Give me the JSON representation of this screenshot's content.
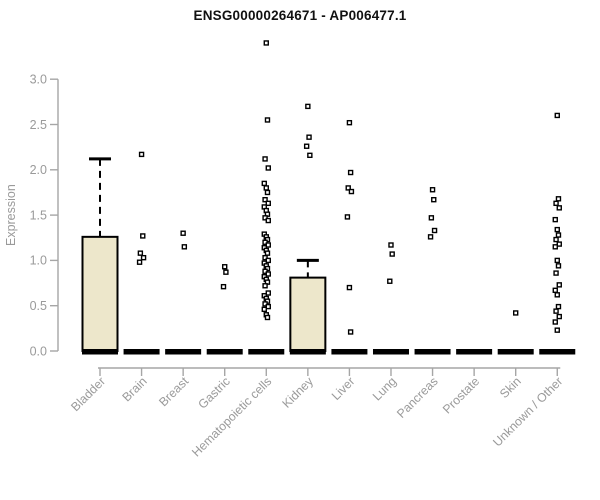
{
  "title": "ENSG00000264671 - AP006477.1",
  "chart_data": {
    "type": "boxplot",
    "title": "ENSG00000264671 - AP006477.1",
    "xlabel": "",
    "ylabel": "Expression",
    "ylim": [
      0.0,
      3.0
    ],
    "yticks": [
      "0.0",
      "0.5",
      "1.0",
      "1.5",
      "2.0",
      "2.5",
      "3.0"
    ],
    "grid": false,
    "legend": false,
    "categories": [
      "Bladder",
      "Brain",
      "Breast",
      "Gastric",
      "Hematopoietic cells",
      "Kidney",
      "Liver",
      "Lung",
      "Pancreas",
      "Prostate",
      "Skin",
      "Unknown / Other"
    ],
    "series": [
      {
        "category": "Bladder",
        "q1": 0,
        "median": 0,
        "q3": 1.26,
        "whisker_low": 0,
        "whisker_high": 2.12,
        "points": []
      },
      {
        "category": "Brain",
        "q1": 0,
        "median": 0,
        "q3": 0,
        "whisker_low": 0,
        "whisker_high": 0,
        "points": [
          2.17,
          1.27,
          1.08,
          1.03,
          0.98
        ]
      },
      {
        "category": "Breast",
        "q1": 0,
        "median": 0,
        "q3": 0,
        "whisker_low": 0,
        "whisker_high": 0,
        "points": [
          1.3,
          1.15
        ]
      },
      {
        "category": "Gastric",
        "q1": 0,
        "median": 0,
        "q3": 0,
        "whisker_low": 0,
        "whisker_high": 0,
        "points": [
          0.93,
          0.87,
          0.71
        ]
      },
      {
        "category": "Hematopoietic cells",
        "q1": 0,
        "median": 0,
        "q3": 0,
        "whisker_low": 0,
        "whisker_high": 0,
        "points": [
          3.4,
          2.55,
          2.12,
          2.02,
          1.85,
          1.8,
          1.75,
          1.67,
          1.63,
          1.59,
          1.55,
          1.51,
          1.47,
          1.44,
          1.29,
          1.26,
          1.23,
          1.2,
          1.17,
          1.14,
          1.11,
          1.08,
          1.03,
          1.0,
          0.97,
          0.94,
          0.91,
          0.88,
          0.85,
          0.82,
          0.79,
          0.76,
          0.72,
          0.64,
          0.61,
          0.58,
          0.55,
          0.52,
          0.49,
          0.46,
          0.4,
          0.37
        ]
      },
      {
        "category": "Kidney",
        "q1": 0,
        "median": 0,
        "q3": 0.81,
        "whisker_low": 0,
        "whisker_high": 1.0,
        "points": [
          2.7,
          2.36,
          2.26,
          2.16
        ]
      },
      {
        "category": "Liver",
        "q1": 0,
        "median": 0,
        "q3": 0,
        "whisker_low": 0,
        "whisker_high": 0,
        "points": [
          2.52,
          1.97,
          1.8,
          1.76,
          1.48,
          0.7,
          0.21
        ]
      },
      {
        "category": "Lung",
        "q1": 0,
        "median": 0,
        "q3": 0,
        "whisker_low": 0,
        "whisker_high": 0,
        "points": [
          1.17,
          1.07,
          0.77
        ]
      },
      {
        "category": "Pancreas",
        "q1": 0,
        "median": 0,
        "q3": 0,
        "whisker_low": 0,
        "whisker_high": 0,
        "points": [
          1.78,
          1.67,
          1.47,
          1.33,
          1.26
        ]
      },
      {
        "category": "Prostate",
        "q1": 0,
        "median": 0,
        "q3": 0,
        "whisker_low": 0,
        "whisker_high": 0,
        "points": []
      },
      {
        "category": "Skin",
        "q1": 0,
        "median": 0,
        "q3": 0,
        "whisker_low": 0,
        "whisker_high": 0,
        "points": [
          0.42
        ]
      },
      {
        "category": "Unknown / Other",
        "q1": 0,
        "median": 0,
        "q3": 0,
        "whisker_low": 0,
        "whisker_high": 0,
        "points": [
          2.6,
          1.68,
          1.63,
          1.58,
          1.45,
          1.34,
          1.28,
          1.23,
          1.18,
          1.15,
          1.0,
          0.94,
          0.86,
          0.73,
          0.67,
          0.62,
          0.49,
          0.44,
          0.38,
          0.32,
          0.23
        ]
      }
    ],
    "colors": {
      "box_fill": "#EDE7CB",
      "box_border": "#000000",
      "median": "#000000",
      "whisker": "#000000",
      "axis": "#A6A6A6",
      "tick_label": "#9A9A9A",
      "title": "#111111",
      "point_stroke": "#000000",
      "point_fill": "#FFFFFF",
      "background": "#FFFFFF"
    }
  }
}
